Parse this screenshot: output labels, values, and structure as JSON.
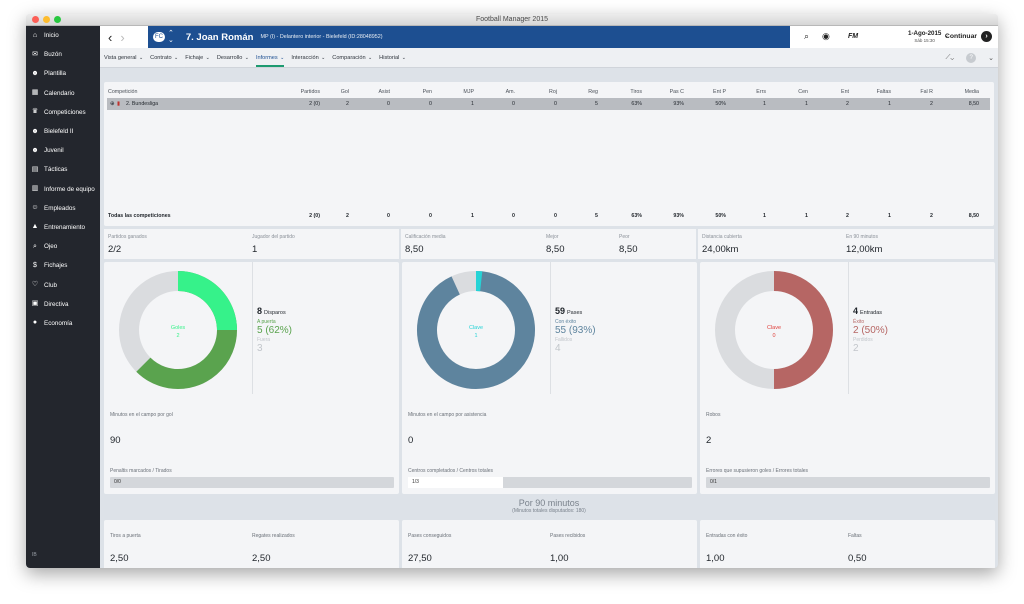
{
  "window": {
    "title": "Football Manager 2015"
  },
  "sidebar": {
    "items": [
      {
        "label": "Inicio",
        "icon": "home-icon",
        "glyph": "⌂"
      },
      {
        "label": "Buzón",
        "icon": "inbox-icon",
        "glyph": "✉"
      },
      {
        "label": "Plantilla",
        "icon": "squad-icon",
        "glyph": "☻"
      },
      {
        "label": "Calendario",
        "icon": "calendar-icon",
        "glyph": "▦"
      },
      {
        "label": "Competiciones",
        "icon": "trophy-icon",
        "glyph": "♛"
      },
      {
        "label": "Bielefeld II",
        "icon": "team-icon",
        "glyph": "☻"
      },
      {
        "label": "Juvenil",
        "icon": "youth-icon",
        "glyph": "☻"
      },
      {
        "label": "Tácticas",
        "icon": "tactics-icon",
        "glyph": "▤"
      },
      {
        "label": "Informe de equipo",
        "icon": "report-icon",
        "glyph": "▥"
      },
      {
        "label": "Empleados",
        "icon": "staff-icon",
        "glyph": "☺"
      },
      {
        "label": "Entrenamiento",
        "icon": "training-icon",
        "glyph": "▲"
      },
      {
        "label": "Ojeo",
        "icon": "scout-icon",
        "glyph": "⌕"
      },
      {
        "label": "Fichajes",
        "icon": "transfers-icon",
        "glyph": "$"
      },
      {
        "label": "Club",
        "icon": "club-icon",
        "glyph": "♡"
      },
      {
        "label": "Directiva",
        "icon": "board-icon",
        "glyph": "▣"
      },
      {
        "label": "Economía",
        "icon": "finance-icon",
        "glyph": "●"
      }
    ],
    "footer": "IB"
  },
  "header": {
    "badge": "FC",
    "player_name": "7. Joan Román",
    "player_desc": "MP (I) - Delantero interior - Bielefeld (ID:28048952)",
    "date": "1-Ago-2015",
    "day": "Sáb 15:30",
    "logo": "FM",
    "continue_label": "Continuar"
  },
  "tabs": [
    {
      "label": "Vista general"
    },
    {
      "label": "Contrato"
    },
    {
      "label": "Fichaje"
    },
    {
      "label": "Desarrollo"
    },
    {
      "label": "Informes"
    },
    {
      "label": "Interacción"
    },
    {
      "label": "Comparación"
    },
    {
      "label": "Historial"
    }
  ],
  "table": {
    "headers": [
      "Competición",
      "Partidos",
      "Gol",
      "Asist",
      "Pen",
      "MJP",
      "Am.",
      "Roj",
      "Reg",
      "Tiros",
      "Pas C",
      "Ent P",
      "Errs",
      "Cen",
      "Ent",
      "Faltas",
      "Fal R",
      "Media"
    ],
    "row": [
      "2. Bundesliga",
      "2 (0)",
      "2",
      "0",
      "0",
      "1",
      "0",
      "0",
      "5",
      "63%",
      "93%",
      "50%",
      "1",
      "1",
      "2",
      "1",
      "2",
      "8,50"
    ],
    "footer": [
      "Todas las competiciones",
      "2 (0)",
      "2",
      "0",
      "0",
      "1",
      "0",
      "0",
      "5",
      "63%",
      "93%",
      "50%",
      "1",
      "1",
      "2",
      "1",
      "2",
      "8,50"
    ]
  },
  "stats": [
    {
      "label": "Partidos ganados",
      "value": "2/2"
    },
    {
      "label": "Jugador del partido",
      "value": "1"
    },
    {
      "label": "Calificación media",
      "value": "8,50"
    },
    {
      "label": "Mejor",
      "value": "8,50"
    },
    {
      "label": "Peor",
      "value": "8,50"
    },
    {
      "label": "Distancia cubierta",
      "value": "24,00km"
    },
    {
      "label": "En 90 minutos",
      "value": "12,00km"
    }
  ],
  "donuts": [
    {
      "center_label": "Goles",
      "center_value": "2",
      "total": "8",
      "total_label": "Disparos",
      "sub1_label": "A puerta",
      "sub1_value": "5 (62%)",
      "sub2_label": "Fuera",
      "sub2_value": "3",
      "fraction": 0.625,
      "highlight": 0.25,
      "color": "#5aa34e",
      "bright": "#36f28a",
      "gray": "#dadcdf",
      "section1_label": "Minutos en el campo por gol",
      "section1_value": "90",
      "bar_label": "Penaltis marcados / Tirados",
      "bar_value": "0/0",
      "bar_fraction": 0
    },
    {
      "center_label": "Clave",
      "center_value": "1",
      "total": "59",
      "total_label": "Pases",
      "sub1_label": "Con éxito",
      "sub1_value": "55 (93%)",
      "sub2_label": "Fallidos",
      "sub2_value": "4",
      "fraction": 0.932,
      "highlight": 0.017,
      "color": "#5e849e",
      "bright": "#25d3d6",
      "gray": "#dadcdf",
      "section1_label": "Minutos en el campo por asistencia",
      "section1_value": "0",
      "bar_label": "Centros completados / Centros totales",
      "bar_value": "1/3",
      "bar_fraction": 0.333
    },
    {
      "center_label": "Clave",
      "center_value": "0",
      "total": "4",
      "total_label": "Entradas",
      "sub1_label": "Éxito",
      "sub1_value": "2 (50%)",
      "sub2_label": "Perdidos",
      "sub2_value": "2",
      "fraction": 0.5,
      "highlight": 0,
      "color": "#b66664",
      "bright": "#e0403c",
      "gray": "#dadcdf",
      "section1_label": "Robos",
      "section1_value": "2",
      "bar_label": "Errores que supusieron goles / Errores totales",
      "bar_value": "0/1",
      "bar_fraction": 0
    }
  ],
  "per90": {
    "title": "Por 90 minutos",
    "subtitle": "(Minutos totales disputados: 180)"
  },
  "bottom": [
    {
      "label1": "Tiros a puerta",
      "value1": "2,50",
      "label2": "Regates realizados",
      "value2": "2,50"
    },
    {
      "label1": "Pases conseguidos",
      "value1": "27,50",
      "label2": "Pases recibidos",
      "value2": "1,00"
    },
    {
      "label1": "Entradas con éxito",
      "value1": "1,00",
      "label2": "Faltas",
      "value2": "0,50"
    }
  ]
}
